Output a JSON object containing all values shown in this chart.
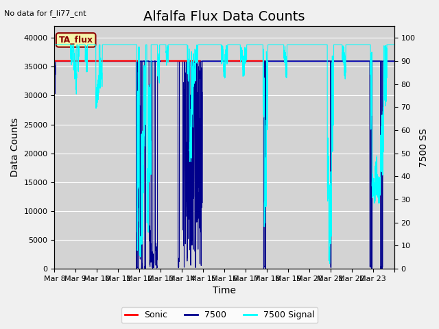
{
  "title": "Alfalfa Flux Data Counts",
  "subtitle": "No data for f_li77_cnt",
  "xlabel": "Time",
  "ylabel_left": "Data Counts",
  "ylabel_right": "7500 SS",
  "annotation": "TA_flux",
  "xlim_days": [
    7,
    23
  ],
  "ylim_left": [
    0,
    42000
  ],
  "ylim_right": [
    0,
    105
  ],
  "yticks_left": [
    0,
    5000,
    10000,
    15000,
    20000,
    25000,
    30000,
    35000,
    40000
  ],
  "yticks_right": [
    0,
    10,
    20,
    30,
    40,
    50,
    60,
    70,
    80,
    90,
    100
  ],
  "xtick_positions": [
    7,
    8,
    9,
    10,
    11,
    12,
    13,
    14,
    15,
    16,
    17,
    18,
    19,
    20,
    21,
    22,
    23
  ],
  "xtick_labels": [
    "Mar 8",
    "Mar 9",
    "Mar 10",
    "Mar 11",
    "Mar 12",
    "Mar 13",
    "Mar 14",
    "Mar 15",
    "Mar 16",
    "Mar 17",
    "Mar 18",
    "Mar 19",
    "Mar 20",
    "Mar 21",
    "Mar 22",
    "Mar 23",
    ""
  ],
  "sonic_color": "#ff0000",
  "blue7500_color": "#00008b",
  "signal_color": "#00ffff",
  "horizontal_line_value": 36000,
  "horizontal_line_color": "#0000cd",
  "bg_color": "#d3d3d3",
  "fig_bg_color": "#f0f0f0",
  "title_fontsize": 14,
  "label_fontsize": 10,
  "tick_fontsize": 8
}
